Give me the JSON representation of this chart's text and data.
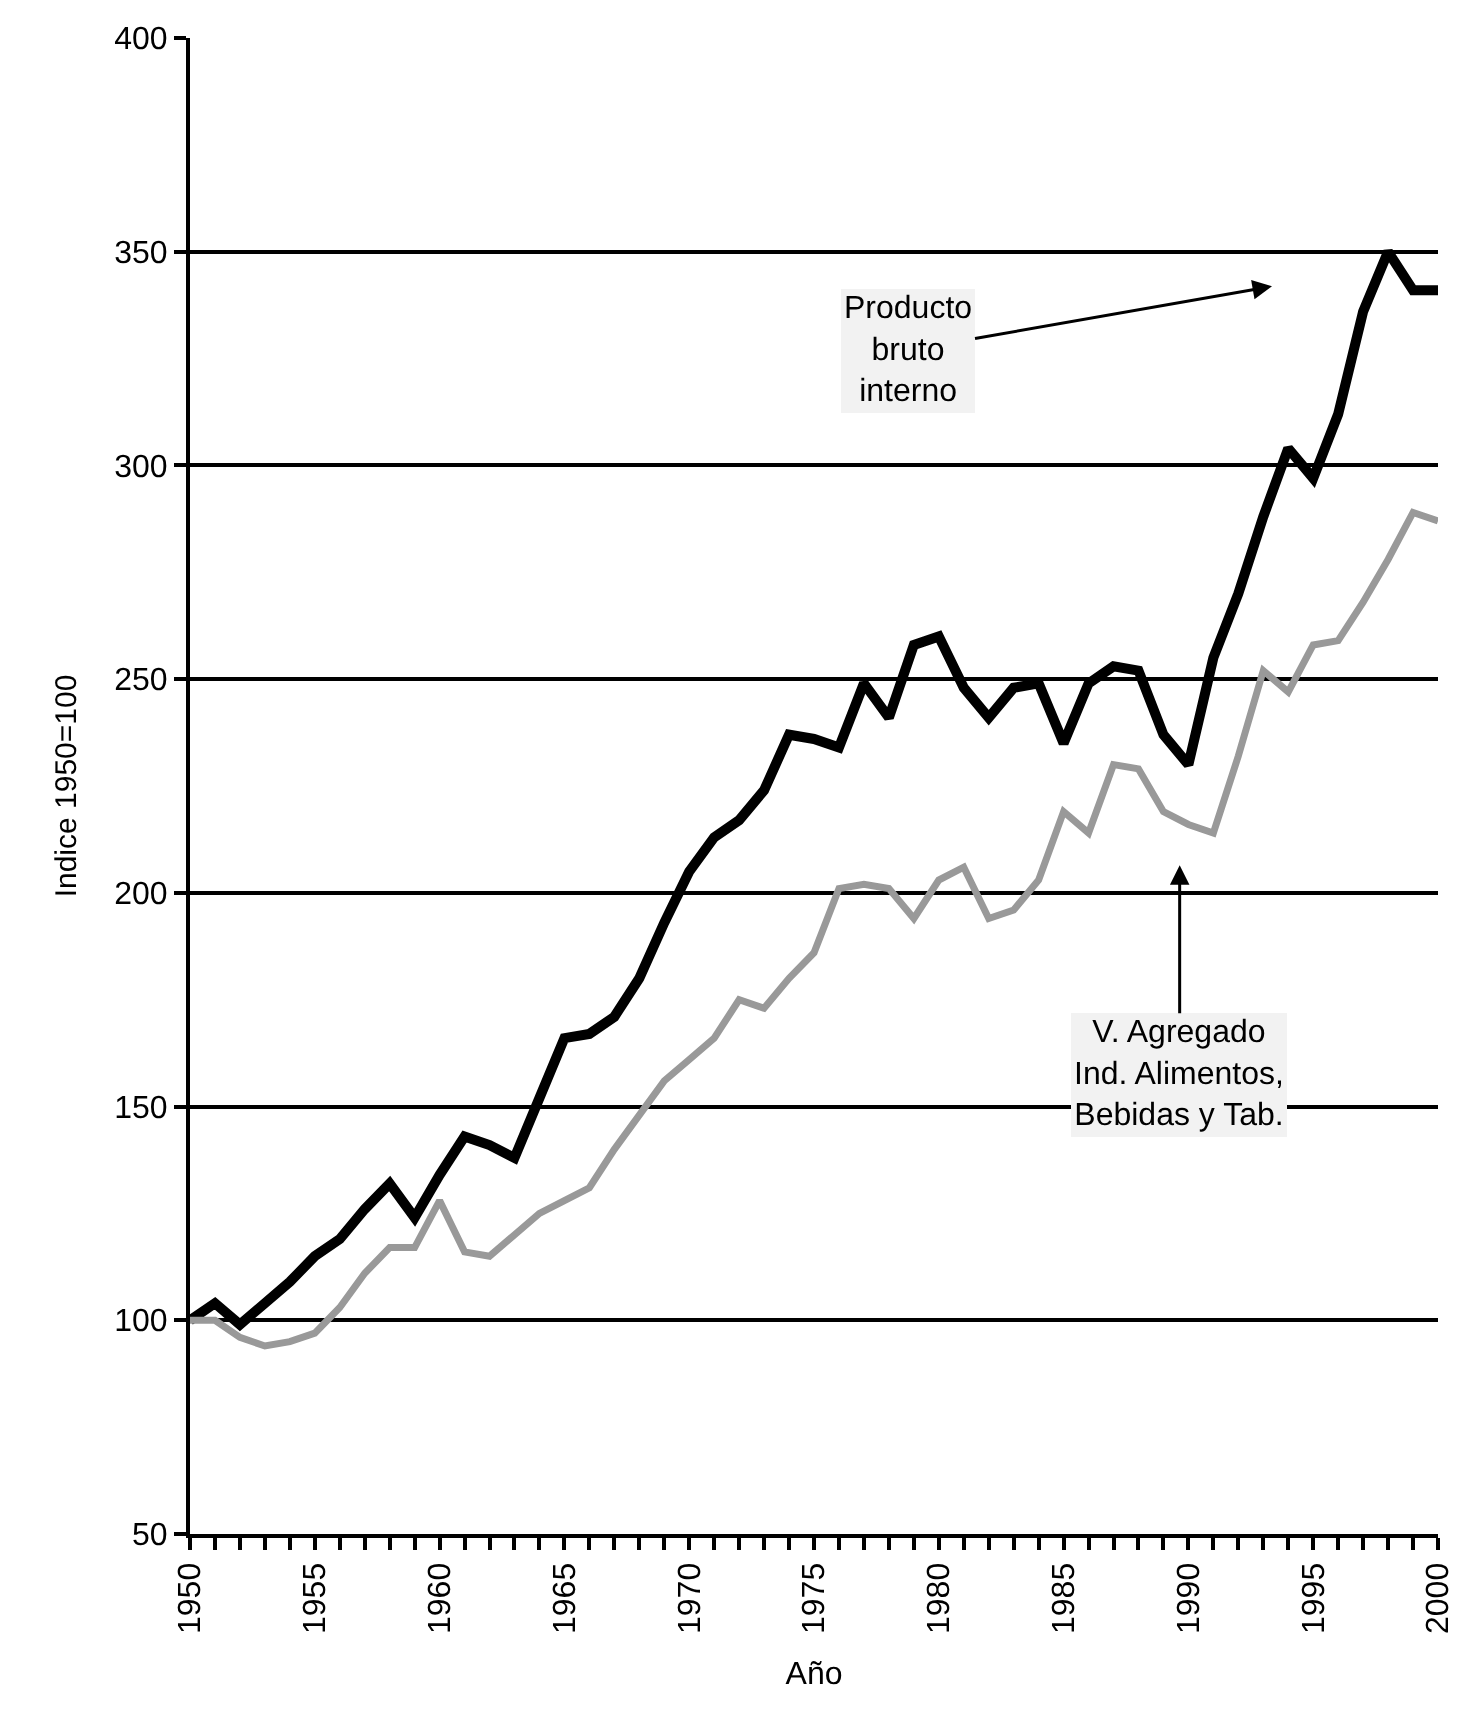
{
  "chart_data": {
    "type": "line",
    "xlabel": "Año",
    "ylabel": "Indice 1950=100",
    "x": [
      1950,
      1951,
      1952,
      1953,
      1954,
      1955,
      1956,
      1957,
      1958,
      1959,
      1960,
      1961,
      1962,
      1963,
      1964,
      1965,
      1966,
      1967,
      1968,
      1969,
      1970,
      1971,
      1972,
      1973,
      1974,
      1975,
      1976,
      1977,
      1978,
      1979,
      1980,
      1981,
      1982,
      1983,
      1984,
      1985,
      1986,
      1987,
      1988,
      1989,
      1990,
      1991,
      1992,
      1993,
      1994,
      1995,
      1996,
      1997,
      1998,
      1999,
      2000
    ],
    "series": [
      {
        "color": "#000000",
        "values": [
          100,
          104,
          99,
          104,
          109,
          115,
          119,
          126,
          132,
          124,
          134,
          143,
          141,
          138,
          152,
          166,
          167,
          171,
          180,
          193,
          205,
          213,
          217,
          224,
          237,
          236,
          234,
          249,
          241,
          258,
          260,
          248,
          241,
          248,
          249,
          235,
          249,
          253,
          252,
          237,
          230,
          255,
          270,
          288,
          304,
          297,
          312,
          336,
          350,
          341,
          341
        ]
      },
      {
        "color": "#999999",
        "values": [
          100,
          100,
          96,
          94,
          95,
          97,
          103,
          111,
          117,
          117,
          128,
          116,
          115,
          120,
          125,
          128,
          131,
          140,
          148,
          156,
          161,
          166,
          175,
          173,
          180,
          186,
          201,
          202,
          201,
          194,
          203,
          206,
          194,
          196,
          203,
          219,
          214,
          230,
          229,
          219,
          216,
          214,
          232,
          252,
          247,
          258,
          259,
          268,
          278,
          289,
          287
        ]
      }
    ],
    "xlim": [
      1950,
      2000
    ],
    "xticks": [
      1950,
      {
        "value": 1951,
        "label": null
      },
      {
        "value": 1952,
        "label": null
      },
      {
        "value": 1953,
        "label": null
      },
      {
        "value": 1954,
        "label": null
      },
      1955,
      {
        "value": 1956,
        "label": null
      },
      {
        "value": 1957,
        "label": null
      },
      {
        "value": 1958,
        "label": null
      },
      {
        "value": 1959,
        "label": null
      },
      1960,
      {
        "value": 1961,
        "label": null
      },
      {
        "value": 1962,
        "label": null
      },
      {
        "value": 1963,
        "label": null
      },
      {
        "value": 1964,
        "label": null
      },
      1965,
      {
        "value": 1966,
        "label": null
      },
      {
        "value": 1967,
        "label": null
      },
      {
        "value": 1968,
        "label": null
      },
      {
        "value": 1969,
        "label": null
      },
      1970,
      {
        "value": 1971,
        "label": null
      },
      {
        "value": 1972,
        "label": null
      },
      {
        "value": 1973,
        "label": null
      },
      {
        "value": 1974,
        "label": null
      },
      1975,
      {
        "value": 1976,
        "label": null
      },
      {
        "value": 1977,
        "label": null
      },
      {
        "value": 1978,
        "label": null
      },
      {
        "value": 1979,
        "label": null
      },
      1980,
      {
        "value": 1981,
        "label": null
      },
      {
        "value": 1982,
        "label": null
      },
      {
        "value": 1983,
        "label": null
      },
      {
        "value": 1984,
        "label": null
      },
      1985,
      {
        "value": 1986,
        "label": null
      },
      {
        "value": 1987,
        "label": null
      },
      {
        "value": 1988,
        "label": null
      },
      {
        "value": 1989,
        "label": null
      },
      1990,
      {
        "value": 1991,
        "label": null
      },
      {
        "value": 1992,
        "label": null
      },
      {
        "value": 1993,
        "label": null
      },
      {
        "value": 1994,
        "label": null
      },
      1995,
      {
        "value": 1996,
        "label": null
      },
      {
        "value": 1997,
        "label": null
      },
      {
        "value": 1998,
        "label": null
      },
      {
        "value": 1999,
        "label": null
      },
      2000
    ],
    "ylim": [
      50,
      400
    ],
    "yticks": [
      50,
      100,
      150,
      200,
      250,
      300,
      350,
      400
    ],
    "grid": "y",
    "marker": "none",
    "line_style": "solid",
    "annotations": [
      "Producto\nbruto\ninterno",
      "V. Agregado\nInd. Alimentos,\nBebidas y Tab."
    ]
  }
}
